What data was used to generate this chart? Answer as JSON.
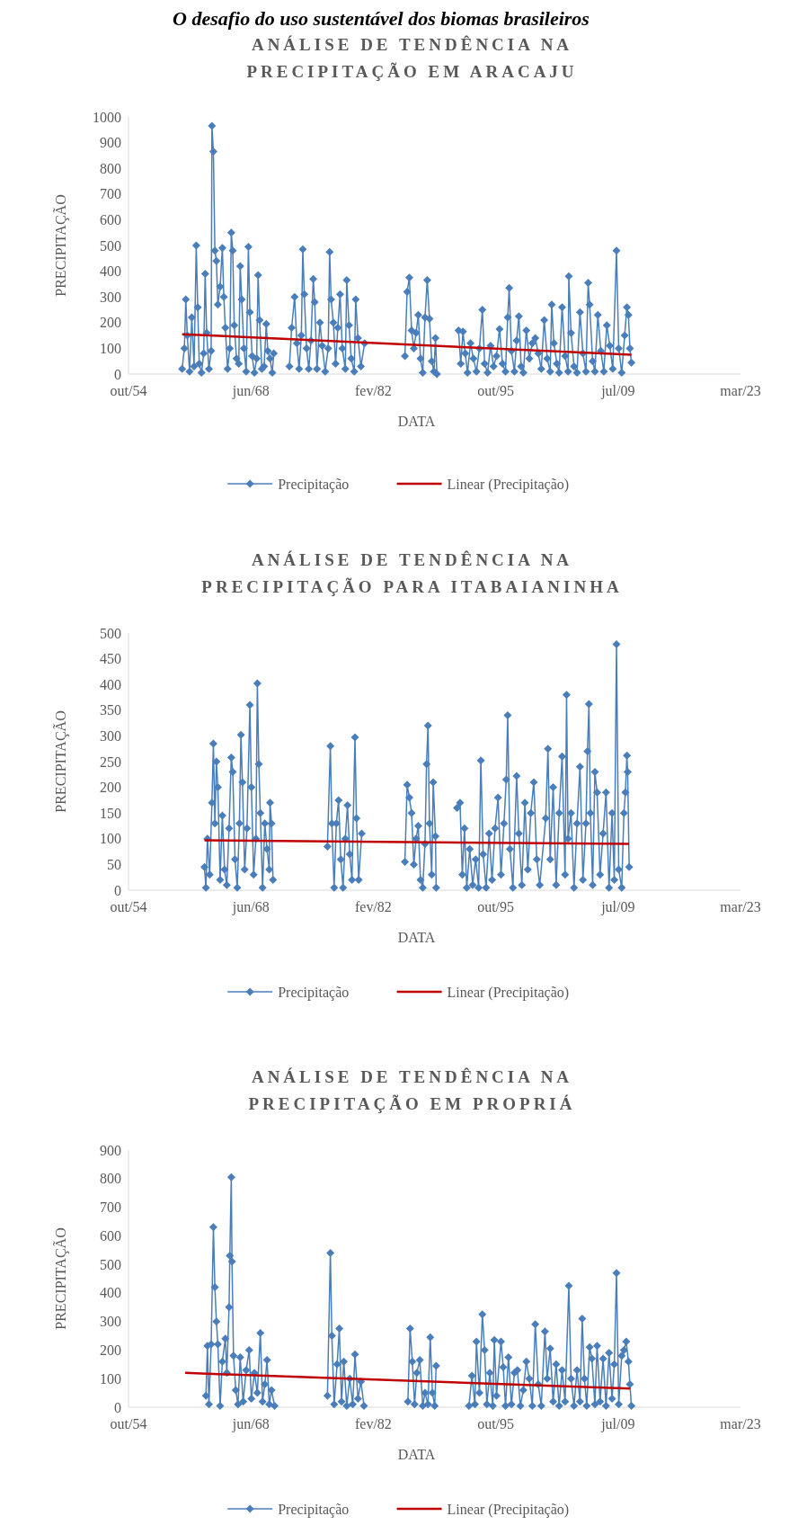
{
  "chart_data": [
    {
      "type": "line",
      "title": "ANÁLISE DE TENDÊNCIA NA PRECIPITAÇÃO EM ARACAJU",
      "xlabel": "DATA",
      "ylabel": "PRECIPITAÇÃO",
      "annotations": [
        "O desafio do uso sustentável dos biomas brasileiros"
      ],
      "xlim": [
        "1954-10-03",
        "2023-03-15"
      ],
      "xticks": [
        {
          "value": "1954-10-03",
          "label": "out/54"
        },
        {
          "value": "1968-06-12",
          "label": "jun/68"
        },
        {
          "value": "1982-02-18",
          "label": "fev/82"
        },
        {
          "value": "1995-10-28",
          "label": "out/95"
        },
        {
          "value": "2009-07-06",
          "label": "jul/09"
        },
        {
          "value": "2023-03-15",
          "label": "mar/23"
        }
      ],
      "ylim": [
        0,
        1000
      ],
      "yticks": [
        0,
        100,
        200,
        300,
        400,
        500,
        600,
        700,
        800,
        900,
        1000
      ],
      "legend": "bottom",
      "marker": "diamond",
      "series": [
        {
          "name": "Precipitação",
          "color": "#4a7ebb",
          "x": [
            "1960-10",
            "1961-01",
            "1961-03",
            "1961-05",
            "1961-08",
            "1961-11",
            "1962-02",
            "1962-05",
            "1962-07",
            "1962-09",
            "1962-12",
            "1963-03",
            "1963-05",
            "1963-07",
            "1963-10",
            "1964-01",
            "1964-02",
            "1964-04",
            "1964-06",
            "1964-08",
            "1964-10",
            "1965-01",
            "1965-04",
            "1965-06",
            "1965-08",
            "1965-11",
            "1966-02",
            "1966-04",
            "1966-06",
            "1966-08",
            "1966-11",
            "1967-02",
            "1967-04",
            "1967-06",
            "1967-09",
            "1967-12",
            "1968-03",
            "1968-05",
            "1968-08",
            "1968-11",
            "1969-02",
            "1969-04",
            "1969-06",
            "1969-09",
            "1969-12",
            "1970-03",
            "1970-05",
            "1970-08",
            "1970-11",
            "1971-01",
            "1972-01",
            "1972-10",
            "1973-01",
            "1973-05",
            "1973-08",
            "1973-11",
            "1974-02",
            "1974-04",
            "1974-06",
            "1974-09",
            "1974-12",
            "1975-03",
            "1975-06",
            "1975-08",
            "1975-11",
            "1976-03",
            "1976-06",
            "1976-10",
            "1977-02",
            "1977-04",
            "1977-06",
            "1977-09",
            "1977-12",
            "1978-03",
            "1978-06",
            "1978-09",
            "1979-01",
            "1979-03",
            "1979-06",
            "1979-09",
            "1980-01",
            "1980-03",
            "1980-06",
            "1980-10",
            "1981-03",
            "1983-06",
            "1985-09",
            "1985-12",
            "1986-03",
            "1986-06",
            "1986-09",
            "1986-12",
            "1987-03",
            "1987-06",
            "1987-09",
            "1987-12",
            "1988-03",
            "1988-06",
            "1988-09",
            "1988-12",
            "1989-02",
            "1989-04",
            "1990-06",
            "1991-09",
            "1991-12",
            "1992-03",
            "1992-06",
            "1992-09",
            "1993-01",
            "1993-05",
            "1993-09",
            "1994-01",
            "1994-05",
            "1994-08",
            "1994-12",
            "1995-04",
            "1995-08",
            "1995-12",
            "1996-04",
            "1996-08",
            "1996-12",
            "1997-03",
            "1997-05",
            "1997-08",
            "1997-12",
            "1998-03",
            "1998-06",
            "1998-09",
            "1998-12",
            "1999-04",
            "1999-08",
            "1999-12",
            "2000-04",
            "2000-08",
            "2000-12",
            "2001-04",
            "2001-08",
            "2001-12",
            "2002-02",
            "2002-05",
            "2002-09",
            "2002-12",
            "2003-04",
            "2003-08",
            "2003-12",
            "2004-01",
            "2004-04",
            "2004-08",
            "2004-12",
            "2005-04",
            "2005-08",
            "2005-12",
            "2006-03",
            "2006-05",
            "2006-09",
            "2006-12",
            "2007-04",
            "2007-08",
            "2007-12",
            "2008-04",
            "2008-08",
            "2008-12",
            "2009-05",
            "2009-08",
            "2009-12",
            "2010-04",
            "2010-07",
            "2010-09",
            "2010-11",
            "2011-01"
          ],
          "values": [
            20,
            100,
            290,
            150,
            10,
            220,
            30,
            500,
            260,
            40,
            5,
            80,
            390,
            160,
            20,
            90,
            965,
            865,
            480,
            440,
            270,
            340,
            490,
            300,
            180,
            20,
            100,
            550,
            480,
            190,
            60,
            40,
            420,
            290,
            100,
            10,
            495,
            240,
            70,
            5,
            60,
            385,
            210,
            20,
            30,
            195,
            90,
            60,
            5,
            80,
            null,
            30,
            180,
            300,
            120,
            20,
            150,
            485,
            310,
            100,
            20,
            130,
            370,
            280,
            20,
            200,
            110,
            10,
            100,
            475,
            290,
            200,
            40,
            180,
            310,
            100,
            20,
            365,
            190,
            60,
            10,
            290,
            140,
            30,
            120,
            null,
            70,
            320,
            375,
            170,
            100,
            160,
            230,
            60,
            5,
            220,
            365,
            215,
            50,
            10,
            140,
            0,
            null,
            170,
            40,
            165,
            80,
            5,
            120,
            60,
            10,
            100,
            250,
            40,
            5,
            110,
            30,
            70,
            175,
            40,
            10,
            220,
            335,
            90,
            10,
            130,
            225,
            30,
            5,
            170,
            60,
            120,
            140,
            80,
            20,
            210,
            60,
            10,
            270,
            120,
            40,
            5,
            260,
            70,
            10,
            380,
            160,
            30,
            5,
            240,
            80,
            10,
            355,
            270,
            50,
            10,
            230,
            90,
            10,
            190,
            110,
            20,
            480,
            100,
            5,
            150,
            260,
            230,
            100,
            45
          ]
        },
        {
          "name": "Linear (Precipitação)",
          "color": "#c00000",
          "marker": "none",
          "x": [
            "1960-10",
            "2011-01"
          ],
          "values": [
            155,
            75
          ]
        }
      ]
    },
    {
      "type": "line",
      "title": "ANÁLISE DE TENDÊNCIA NA PRECIPITAÇÃO PARA ITABAIANINHA",
      "xlabel": "DATA",
      "ylabel": "PRECIPITAÇÃO",
      "xlim": [
        "1954-10-03",
        "2023-03-15"
      ],
      "xticks": [
        {
          "value": "1954-10-03",
          "label": "out/54"
        },
        {
          "value": "1968-06-12",
          "label": "jun/68"
        },
        {
          "value": "1982-02-18",
          "label": "fev/82"
        },
        {
          "value": "1995-10-28",
          "label": "out/95"
        },
        {
          "value": "2009-07-06",
          "label": "jul/09"
        },
        {
          "value": "2023-03-15",
          "label": "mar/23"
        }
      ],
      "ylim": [
        0,
        500
      ],
      "yticks": [
        0,
        50,
        100,
        150,
        200,
        250,
        300,
        350,
        400,
        450,
        500
      ],
      "legend": "bottom",
      "marker": "diamond",
      "series": [
        {
          "name": "Precipitação",
          "color": "#4a7ebb",
          "x": [
            "1963-04",
            "1963-06",
            "1963-08",
            "1963-11",
            "1964-02",
            "1964-04",
            "1964-06",
            "1964-08",
            "1964-10",
            "1965-01",
            "1965-04",
            "1965-07",
            "1965-10",
            "1966-01",
            "1966-04",
            "1966-06",
            "1966-09",
            "1966-12",
            "1967-03",
            "1967-05",
            "1967-07",
            "1967-10",
            "1968-01",
            "1968-05",
            "1968-07",
            "1968-10",
            "1969-01",
            "1969-03",
            "1969-05",
            "1969-07",
            "1969-10",
            "1970-01",
            "1970-04",
            "1970-07",
            "1970-08",
            "1970-10",
            "1970-12",
            "1974-01",
            "1977-01",
            "1977-05",
            "1977-07",
            "1977-10",
            "1978-01",
            "1978-04",
            "1978-07",
            "1978-10",
            "1979-01",
            "1979-04",
            "1979-07",
            "1979-10",
            "1980-02",
            "1980-04",
            "1980-07",
            "1980-11",
            "1983-06",
            "1985-09",
            "1985-12",
            "1986-03",
            "1986-06",
            "1986-09",
            "1986-12",
            "1987-03",
            "1987-06",
            "1987-09",
            "1987-12",
            "1988-02",
            "1988-04",
            "1988-06",
            "1988-09",
            "1988-11",
            "1989-02",
            "1989-03",
            "1990-05",
            "1991-07",
            "1991-11",
            "1992-02",
            "1992-05",
            "1992-08",
            "1992-12",
            "1993-04",
            "1993-08",
            "1993-12",
            "1994-03",
            "1994-06",
            "1994-10",
            "1995-02",
            "1995-06",
            "1995-10",
            "1996-02",
            "1996-06",
            "1996-10",
            "1997-01",
            "1997-03",
            "1997-06",
            "1997-10",
            "1998-03",
            "1998-06",
            "1998-10",
            "1999-02",
            "1999-06",
            "1999-10",
            "2000-02",
            "2000-06",
            "2000-10",
            "2001-06",
            "2001-09",
            "2001-12",
            "2002-04",
            "2002-08",
            "2002-12",
            "2003-04",
            "2003-08",
            "2003-10",
            "2003-12",
            "2004-04",
            "2004-08",
            "2004-12",
            "2005-04",
            "2005-08",
            "2005-12",
            "2006-02",
            "2006-04",
            "2006-06",
            "2006-09",
            "2006-12",
            "2007-03",
            "2007-07",
            "2007-11",
            "2008-03",
            "2008-07",
            "2008-11",
            "2009-02",
            "2009-05",
            "2009-08",
            "2009-12",
            "2010-03",
            "2010-05",
            "2010-07",
            "2010-08",
            "2010-10"
          ],
          "values": [
            45,
            5,
            100,
            30,
            170,
            285,
            130,
            250,
            200,
            20,
            145,
            40,
            10,
            120,
            258,
            230,
            60,
            5,
            130,
            302,
            210,
            40,
            120,
            360,
            200,
            30,
            100,
            402,
            245,
            150,
            5,
            130,
            80,
            40,
            170,
            130,
            20,
            null,
            85,
            280,
            130,
            5,
            130,
            175,
            60,
            5,
            100,
            165,
            70,
            20,
            297,
            140,
            20,
            110,
            null,
            55,
            205,
            180,
            150,
            50,
            100,
            125,
            20,
            5,
            90,
            245,
            320,
            130,
            30,
            210,
            105,
            5,
            null,
            160,
            170,
            30,
            120,
            5,
            80,
            10,
            60,
            5,
            252,
            70,
            5,
            110,
            20,
            120,
            180,
            30,
            130,
            215,
            340,
            80,
            5,
            222,
            110,
            10,
            170,
            40,
            150,
            210,
            60,
            10,
            140,
            275,
            60,
            200,
            10,
            150,
            260,
            30,
            380,
            100,
            150,
            5,
            130,
            240,
            20,
            130,
            270,
            362,
            150,
            10,
            230,
            190,
            30,
            110,
            190,
            5,
            150,
            20,
            478,
            40,
            5,
            150,
            190,
            262,
            230,
            45
          ]
        },
        {
          "name": "Linear (Precipitação)",
          "color": "#c00000",
          "marker": "none",
          "x": [
            "1963-04",
            "2010-10"
          ],
          "values": [
            97,
            90
          ]
        }
      ]
    },
    {
      "type": "line",
      "title": "ANÁLISE DE TENDÊNCIA NA PRECIPITAÇÃO EM PROPRIÁ",
      "xlabel": "DATA",
      "ylabel": "PRECIPITAÇÃO",
      "xlim": [
        "1954-10-03",
        "2023-03-15"
      ],
      "xticks": [
        {
          "value": "1954-10-03",
          "label": "out/54"
        },
        {
          "value": "1968-06-12",
          "label": "jun/68"
        },
        {
          "value": "1982-02-18",
          "label": "fev/82"
        },
        {
          "value": "1995-10-28",
          "label": "out/95"
        },
        {
          "value": "2009-07-06",
          "label": "jul/09"
        },
        {
          "value": "2023-03-15",
          "label": "mar/23"
        }
      ],
      "ylim": [
        0,
        900
      ],
      "yticks": [
        0,
        100,
        200,
        300,
        400,
        500,
        600,
        700,
        800,
        900
      ],
      "legend": "bottom",
      "marker": "diamond",
      "series": [
        {
          "name": "Precipitação",
          "color": "#4a7ebb",
          "x": [
            "1963-06",
            "1963-08",
            "1963-10",
            "1964-01",
            "1964-04",
            "1964-06",
            "1964-08",
            "1964-10",
            "1965-01",
            "1965-04",
            "1965-08",
            "1965-10",
            "1966-01",
            "1966-02",
            "1966-04",
            "1966-05",
            "1966-07",
            "1966-10",
            "1967-01",
            "1967-04",
            "1967-08",
            "1967-12",
            "1968-04",
            "1968-07",
            "1968-11",
            "1969-03",
            "1969-07",
            "1969-10",
            "1970-01",
            "1970-04",
            "1970-07",
            "1970-10",
            "1971-02",
            "1974-01",
            "1977-01",
            "1977-05",
            "1977-07",
            "1977-10",
            "1978-02",
            "1978-05",
            "1978-08",
            "1978-11",
            "1979-03",
            "1979-07",
            "1979-11",
            "1980-02",
            "1980-06",
            "1980-10",
            "1981-02",
            "1983-06",
            "1986-01",
            "1986-04",
            "1986-07",
            "1986-10",
            "1987-01",
            "1987-05",
            "1987-09",
            "1987-12",
            "1988-04",
            "1988-07",
            "1988-10",
            "1989-01",
            "1989-03",
            "1991-01",
            "1992-11",
            "1993-03",
            "1993-07",
            "1993-09",
            "1994-01",
            "1994-05",
            "1994-08",
            "1994-11",
            "1995-03",
            "1995-07",
            "1995-09",
            "1995-12",
            "1996-06",
            "1996-09",
            "1996-12",
            "1997-04",
            "1997-08",
            "1997-12",
            "1998-04",
            "1998-08",
            "1998-12",
            "1999-04",
            "1999-08",
            "1999-12",
            "2000-04",
            "2000-08",
            "2000-12",
            "2001-05",
            "2001-08",
            "2001-12",
            "2002-04",
            "2002-08",
            "2002-12",
            "2003-04",
            "2003-08",
            "2004-01",
            "2004-04",
            "2004-08",
            "2004-12",
            "2005-04",
            "2005-07",
            "2005-10",
            "2006-01",
            "2006-05",
            "2006-08",
            "2006-12",
            "2007-03",
            "2007-07",
            "2007-11",
            "2008-03",
            "2008-07",
            "2008-11",
            "2009-02",
            "2009-05",
            "2009-08",
            "2009-12",
            "2010-03",
            "2010-06",
            "2010-09",
            "2010-11",
            "2011-01"
          ],
          "values": [
            40,
            215,
            10,
            220,
            630,
            420,
            300,
            220,
            5,
            160,
            240,
            120,
            350,
            530,
            805,
            510,
            180,
            60,
            10,
            175,
            20,
            130,
            200,
            30,
            120,
            50,
            260,
            20,
            80,
            165,
            10,
            60,
            5,
            null,
            40,
            540,
            250,
            10,
            150,
            275,
            20,
            160,
            5,
            100,
            10,
            185,
            30,
            90,
            5,
            null,
            20,
            275,
            160,
            10,
            120,
            165,
            5,
            50,
            10,
            245,
            50,
            5,
            145,
            null,
            5,
            110,
            10,
            230,
            50,
            325,
            200,
            10,
            120,
            5,
            235,
            40,
            230,
            140,
            5,
            175,
            10,
            120,
            130,
            5,
            60,
            160,
            100,
            5,
            290,
            80,
            5,
            265,
            100,
            205,
            20,
            150,
            5,
            130,
            20,
            425,
            100,
            5,
            130,
            20,
            310,
            100,
            5,
            210,
            170,
            10,
            215,
            20,
            170,
            5,
            190,
            30,
            150,
            470,
            10,
            180,
            200,
            230,
            160,
            80,
            5
          ]
        },
        {
          "name": "Linear (Precipitação)",
          "color": "#c00000",
          "marker": "none",
          "x": [
            "1961-02",
            "2010-11"
          ],
          "values": [
            120,
            65
          ]
        }
      ]
    }
  ]
}
